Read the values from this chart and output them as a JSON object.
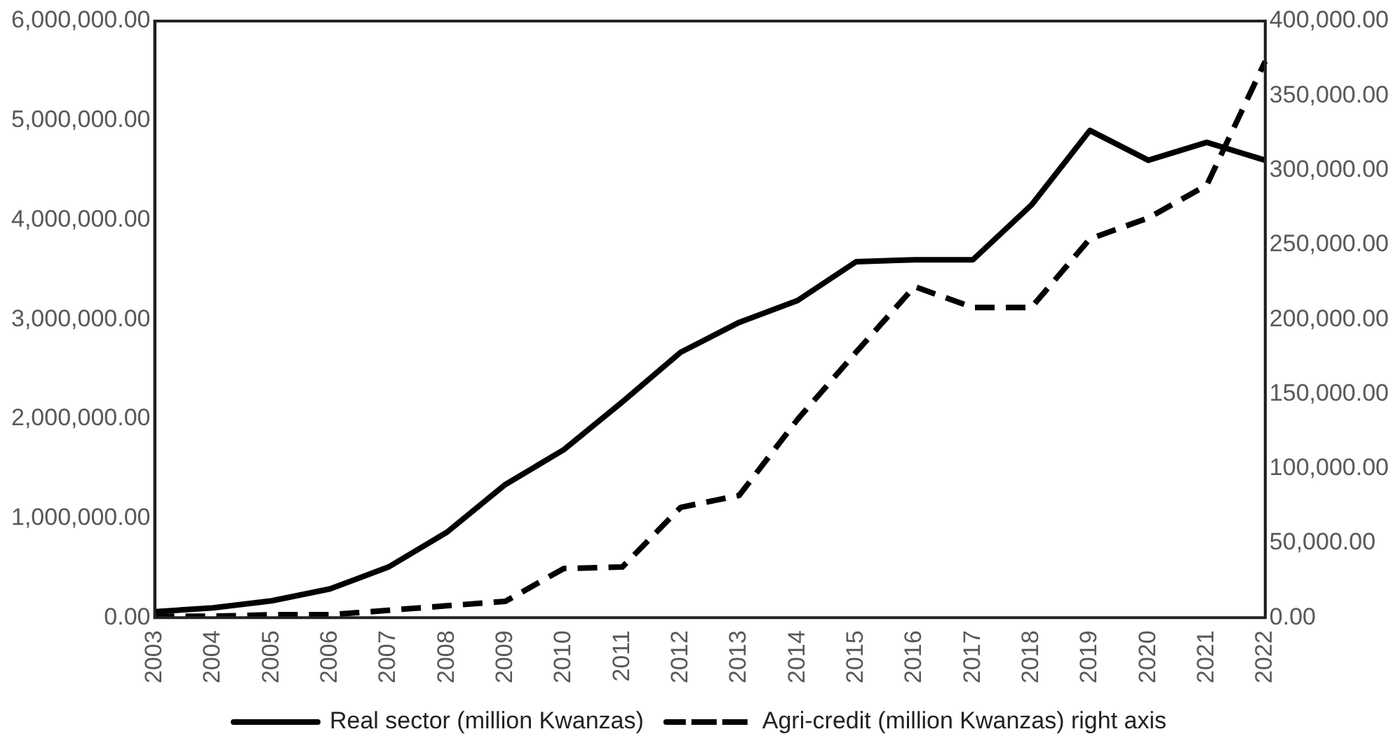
{
  "chart_data": {
    "type": "line",
    "categories": [
      "2003",
      "2004",
      "2005",
      "2006",
      "2007",
      "2008",
      "2009",
      "2010",
      "2011",
      "2012",
      "2013",
      "2014",
      "2015",
      "2016",
      "2017",
      "2018",
      "2019",
      "2020",
      "2021",
      "2022"
    ],
    "series": [
      {
        "name": "Real sector (million Kwanzas)",
        "color": "#000000",
        "line_style": "solid",
        "values": [
          60000,
          100000,
          170000,
          290000,
          510000,
          860000,
          1340000,
          1690000,
          2170000,
          2670000,
          2970000,
          3190000,
          3580000,
          3600000,
          3600000,
          4150000,
          4900000,
          4600000,
          4780000,
          4600000
        ]
      },
      {
        "name": "Agri-credit (million Kwanzas) right axis",
        "color": "#000000",
        "line_style": "dashed",
        "axis": "y2",
        "values": [
          1000,
          1000,
          2000,
          2000,
          5000,
          8000,
          11000,
          33000,
          34000,
          74000,
          82000,
          133000,
          178000,
          222000,
          208000,
          208000,
          254000,
          268000,
          290000,
          373000
        ]
      }
    ],
    "ylim": [
      0,
      6000000
    ],
    "yticks": [
      {
        "value": 0,
        "label": "0.00"
      },
      {
        "value": 1000000,
        "label": "1,000,000.00"
      },
      {
        "value": 2000000,
        "label": "2,000,000.00"
      },
      {
        "value": 3000000,
        "label": "3,000,000.00"
      },
      {
        "value": 4000000,
        "label": "4,000,000.00"
      },
      {
        "value": 5000000,
        "label": "5,000,000.00"
      },
      {
        "value": 6000000,
        "label": "6,000,000.00"
      }
    ],
    "y2lim": [
      0,
      400000
    ],
    "y2ticks": [
      {
        "value": 0,
        "label": "0.00"
      },
      {
        "value": 50000,
        "label": "50,000.00"
      },
      {
        "value": 100000,
        "label": "100,000.00"
      },
      {
        "value": 150000,
        "label": "150,000.00"
      },
      {
        "value": 200000,
        "label": "200,000.00"
      },
      {
        "value": 250000,
        "label": "250,000.00"
      },
      {
        "value": 300000,
        "label": "300,000.00"
      },
      {
        "value": 350000,
        "label": "350,000.00"
      },
      {
        "value": 400000,
        "label": "400,000.00"
      }
    ],
    "grid": false,
    "legend": "bottom",
    "marker": "none"
  }
}
